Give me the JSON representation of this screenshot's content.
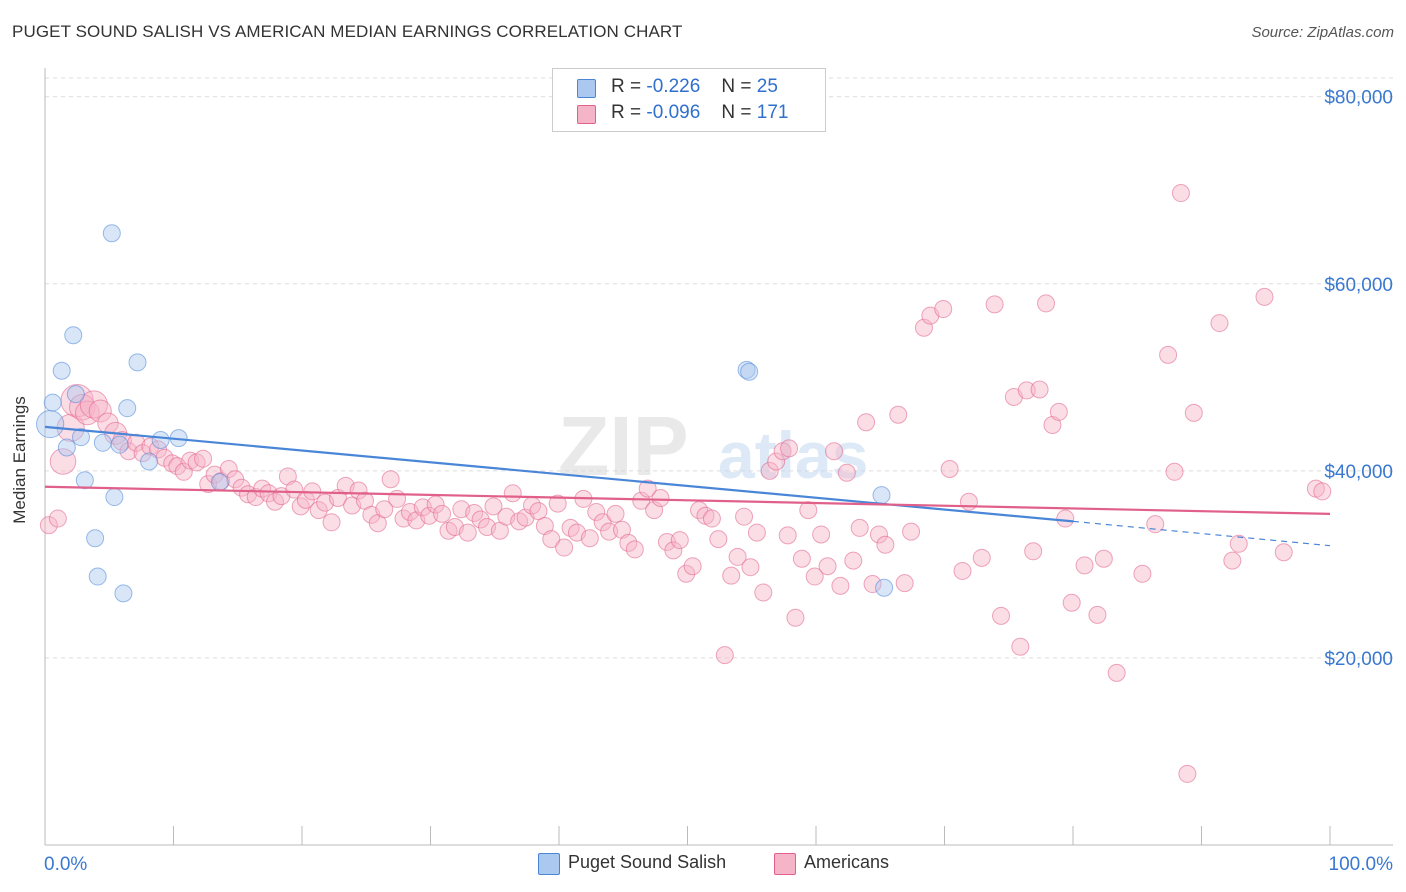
{
  "header": {
    "title": "PUGET SOUND SALISH VS AMERICAN MEDIAN EARNINGS CORRELATION CHART",
    "source": "Source: ZipAtlas.com"
  },
  "watermark": {
    "zip": "ZIP",
    "atlas": "atlas"
  },
  "legend": {
    "rows": [
      {
        "r_label": "R =",
        "r_value": "-0.226",
        "n_label": "N =",
        "n_value": "25",
        "color": "#aac8f0"
      },
      {
        "r_label": "R =",
        "r_value": "-0.096",
        "n_label": "N =",
        "n_value": "171",
        "color": "#f6b4c8"
      }
    ]
  },
  "bottom_legend": [
    {
      "label": "Puget Sound Salish",
      "color": "#aac8f0"
    },
    {
      "label": "Americans",
      "color": "#f6b4c8"
    }
  ],
  "chart_data": {
    "type": "scatter",
    "title": "PUGET SOUND SALISH VS AMERICAN MEDIAN EARNINGS CORRELATION CHART",
    "xlabel": "",
    "ylabel": "Median Earnings",
    "xlim": [
      0,
      100
    ],
    "ylim": [
      0,
      82000
    ],
    "x_tick_labels": [
      "0.0%",
      "100.0%"
    ],
    "y_ticks": [
      20000,
      40000,
      60000,
      80000
    ],
    "y_tick_labels": [
      "$20,000",
      "$40,000",
      "$60,000",
      "$80,000"
    ],
    "grid": true,
    "legend_position": "top-center",
    "series": [
      {
        "name": "Puget Sound Salish",
        "color": "#4a86d8",
        "fill": "#aac8f0",
        "trend": {
          "x": [
            0,
            80
          ],
          "y": [
            44700,
            34600
          ],
          "dashed_to": [
            100,
            32000
          ]
        },
        "points": [
          [
            0.4,
            45000,
            1.6
          ],
          [
            0.6,
            47300,
            1
          ],
          [
            1.3,
            50700,
            1
          ],
          [
            1.7,
            42500,
            1
          ],
          [
            2.2,
            54500,
            1
          ],
          [
            2.4,
            48200,
            1
          ],
          [
            2.8,
            43600,
            1
          ],
          [
            3.1,
            39000,
            1
          ],
          [
            3.9,
            32800,
            1
          ],
          [
            4.1,
            28700,
            1
          ],
          [
            4.5,
            43000,
            1
          ],
          [
            5.2,
            65400,
            1
          ],
          [
            5.4,
            37200,
            1
          ],
          [
            5.8,
            42800,
            1
          ],
          [
            6.1,
            26900,
            1
          ],
          [
            6.4,
            46700,
            1
          ],
          [
            7.2,
            51600,
            1
          ],
          [
            8.1,
            41000,
            1
          ],
          [
            9.0,
            43300,
            1
          ],
          [
            10.4,
            43500,
            1
          ],
          [
            13.6,
            38800,
            1
          ],
          [
            54.6,
            50800,
            1
          ],
          [
            54.8,
            50600,
            1
          ],
          [
            65.1,
            37400,
            1
          ],
          [
            65.3,
            27500,
            1
          ]
        ]
      },
      {
        "name": "Americans",
        "color": "#e0608a",
        "fill": "#f6b4c8",
        "trend": {
          "x": [
            0,
            100
          ],
          "y": [
            38300,
            35400
          ]
        },
        "points": [
          [
            0.3,
            34200,
            1
          ],
          [
            1.0,
            34900,
            1
          ],
          [
            1.4,
            41000,
            1.5
          ],
          [
            2.0,
            44600,
            1.6
          ],
          [
            2.5,
            47500,
            1.9
          ],
          [
            2.9,
            46800,
            1.5
          ],
          [
            3.3,
            46200,
            1.4
          ],
          [
            3.8,
            47100,
            1.6
          ],
          [
            4.3,
            46400,
            1.3
          ],
          [
            4.9,
            45100,
            1.2
          ],
          [
            5.5,
            44000,
            1.3
          ],
          [
            6.0,
            43200,
            1.1
          ],
          [
            6.5,
            42100,
            1
          ],
          [
            7.1,
            43000,
            1
          ],
          [
            7.6,
            41900,
            1
          ],
          [
            8.2,
            42600,
            1
          ],
          [
            8.8,
            42300,
            1
          ],
          [
            9.3,
            41400,
            1
          ],
          [
            9.9,
            40800,
            1
          ],
          [
            10.3,
            40500,
            1
          ],
          [
            10.8,
            39900,
            1
          ],
          [
            11.3,
            41100,
            1
          ],
          [
            11.8,
            40900,
            1
          ],
          [
            12.3,
            41300,
            1
          ],
          [
            12.7,
            38600,
            1
          ],
          [
            13.2,
            39600,
            1
          ],
          [
            13.7,
            38900,
            1
          ],
          [
            14.3,
            40200,
            1
          ],
          [
            14.8,
            39100,
            1
          ],
          [
            15.3,
            38200,
            1
          ],
          [
            15.8,
            37500,
            1
          ],
          [
            16.4,
            37200,
            1
          ],
          [
            16.9,
            38100,
            1
          ],
          [
            17.4,
            37600,
            1
          ],
          [
            17.9,
            36700,
            1
          ],
          [
            18.4,
            37300,
            1
          ],
          [
            18.9,
            39400,
            1
          ],
          [
            19.4,
            38000,
            1
          ],
          [
            19.9,
            36200,
            1
          ],
          [
            20.3,
            36900,
            1
          ],
          [
            20.8,
            37800,
            1
          ],
          [
            21.3,
            35800,
            1
          ],
          [
            21.8,
            36600,
            1
          ],
          [
            22.3,
            34500,
            1
          ],
          [
            22.8,
            37100,
            1
          ],
          [
            23.4,
            38400,
            1
          ],
          [
            23.9,
            36300,
            1
          ],
          [
            24.4,
            37900,
            1
          ],
          [
            24.9,
            36800,
            1
          ],
          [
            25.4,
            35300,
            1
          ],
          [
            25.9,
            34400,
            1
          ],
          [
            26.4,
            35900,
            1
          ],
          [
            26.9,
            39100,
            1
          ],
          [
            27.4,
            37000,
            1
          ],
          [
            27.9,
            34900,
            1
          ],
          [
            28.4,
            35600,
            1
          ],
          [
            28.9,
            34700,
            1
          ],
          [
            29.4,
            36100,
            1
          ],
          [
            29.9,
            35200,
            1
          ],
          [
            30.4,
            36400,
            1
          ],
          [
            30.9,
            35400,
            1
          ],
          [
            31.4,
            33600,
            1
          ],
          [
            31.9,
            34000,
            1
          ],
          [
            32.4,
            35900,
            1
          ],
          [
            32.9,
            33400,
            1
          ],
          [
            33.4,
            35500,
            1
          ],
          [
            33.9,
            34800,
            1
          ],
          [
            34.4,
            34000,
            1
          ],
          [
            34.9,
            36200,
            1
          ],
          [
            35.4,
            33600,
            1
          ],
          [
            35.9,
            35100,
            1
          ],
          [
            36.4,
            37600,
            1
          ],
          [
            36.9,
            34600,
            1
          ],
          [
            37.4,
            35000,
            1
          ],
          [
            37.9,
            36300,
            1
          ],
          [
            38.4,
            35700,
            1
          ],
          [
            38.9,
            34100,
            1
          ],
          [
            39.4,
            32700,
            1
          ],
          [
            39.9,
            36500,
            1
          ],
          [
            40.4,
            31800,
            1
          ],
          [
            40.9,
            33900,
            1
          ],
          [
            41.4,
            33400,
            1
          ],
          [
            41.9,
            37000,
            1
          ],
          [
            42.4,
            32800,
            1
          ],
          [
            42.9,
            35600,
            1
          ],
          [
            43.4,
            34500,
            1
          ],
          [
            43.9,
            33500,
            1
          ],
          [
            44.4,
            35400,
            1
          ],
          [
            44.9,
            33700,
            1
          ],
          [
            45.4,
            32300,
            1
          ],
          [
            45.9,
            31600,
            1
          ],
          [
            46.4,
            36800,
            1
          ],
          [
            46.9,
            38100,
            1
          ],
          [
            47.4,
            35800,
            1
          ],
          [
            47.9,
            37100,
            1
          ],
          [
            48.4,
            32400,
            1
          ],
          [
            48.9,
            31500,
            1
          ],
          [
            49.4,
            32600,
            1
          ],
          [
            49.9,
            29000,
            1
          ],
          [
            50.4,
            29800,
            1
          ],
          [
            50.9,
            35800,
            1
          ],
          [
            51.4,
            35200,
            1
          ],
          [
            51.9,
            34900,
            1
          ],
          [
            52.4,
            32700,
            1
          ],
          [
            52.9,
            20300,
            1
          ],
          [
            53.4,
            28800,
            1
          ],
          [
            53.9,
            30800,
            1
          ],
          [
            54.4,
            35100,
            1
          ],
          [
            54.9,
            29700,
            1
          ],
          [
            55.4,
            33400,
            1
          ],
          [
            55.9,
            27000,
            1
          ],
          [
            56.4,
            40000,
            1
          ],
          [
            56.9,
            41000,
            1
          ],
          [
            57.4,
            42100,
            1
          ],
          [
            57.9,
            42400,
            1
          ],
          [
            58.4,
            24300,
            1
          ],
          [
            58.9,
            30600,
            1
          ],
          [
            59.4,
            35800,
            1
          ],
          [
            59.9,
            28700,
            1
          ],
          [
            60.4,
            33200,
            1
          ],
          [
            60.9,
            29800,
            1
          ],
          [
            61.4,
            42100,
            1
          ],
          [
            61.9,
            27700,
            1
          ],
          [
            62.4,
            39800,
            1
          ],
          [
            62.9,
            30400,
            1
          ],
          [
            63.4,
            33900,
            1
          ],
          [
            63.9,
            45200,
            1
          ],
          [
            64.4,
            27900,
            1
          ],
          [
            64.9,
            33200,
            1
          ],
          [
            65.4,
            32100,
            1
          ],
          [
            66.4,
            46000,
            1
          ],
          [
            66.9,
            28000,
            1
          ],
          [
            67.4,
            33500,
            1
          ],
          [
            68.4,
            55300,
            1
          ],
          [
            68.9,
            56600,
            1
          ],
          [
            69.9,
            57300,
            1
          ],
          [
            70.4,
            40200,
            1
          ],
          [
            71.4,
            29300,
            1
          ],
          [
            71.9,
            36700,
            1
          ],
          [
            72.9,
            30700,
            1
          ],
          [
            73.9,
            57800,
            1
          ],
          [
            74.4,
            24500,
            1
          ],
          [
            75.4,
            47900,
            1
          ],
          [
            75.9,
            21200,
            1
          ],
          [
            76.4,
            48600,
            1
          ],
          [
            76.9,
            31400,
            1
          ],
          [
            77.4,
            48700,
            1
          ],
          [
            77.9,
            57900,
            1
          ],
          [
            78.4,
            44900,
            1
          ],
          [
            78.9,
            46300,
            1
          ],
          [
            79.4,
            34900,
            1
          ],
          [
            79.9,
            25900,
            1
          ],
          [
            80.9,
            29900,
            1
          ],
          [
            81.9,
            24600,
            1
          ],
          [
            82.4,
            30600,
            1
          ],
          [
            83.4,
            18400,
            1
          ],
          [
            85.4,
            29000,
            1
          ],
          [
            86.4,
            34300,
            1
          ],
          [
            87.4,
            52400,
            1
          ],
          [
            87.9,
            39900,
            1
          ],
          [
            88.4,
            69700,
            1
          ],
          [
            88.9,
            7600,
            1
          ],
          [
            89.4,
            46200,
            1
          ],
          [
            91.4,
            55800,
            1
          ],
          [
            92.4,
            30400,
            1
          ],
          [
            92.9,
            32200,
            1
          ],
          [
            94.9,
            58600,
            1
          ],
          [
            96.4,
            31300,
            1
          ],
          [
            98.9,
            38100,
            1
          ],
          [
            99.4,
            37800,
            1
          ],
          [
            57.8,
            33100,
            1
          ]
        ]
      }
    ]
  }
}
